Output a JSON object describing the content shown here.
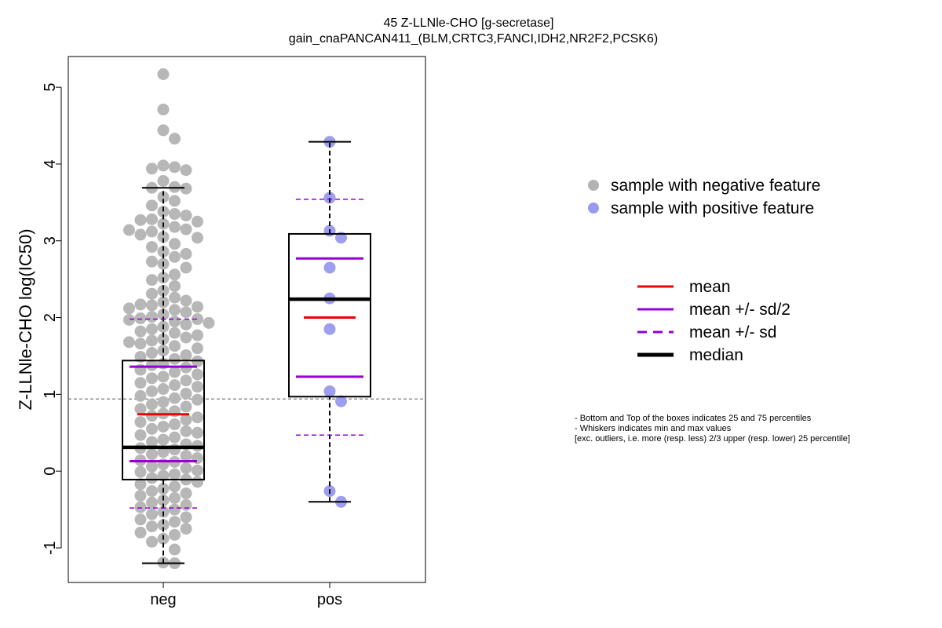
{
  "chart_data": {
    "type": "boxplot",
    "title": "45 Z-LLNle-CHO [g-secretase]",
    "subtitle": "gain_cnaPANCAN411_(BLM,CRTC3,FANCI,IDH2,NR2F2,PCSK6)",
    "xlabel": "",
    "ylabel": "Z-LLNle-CHO log(IC50)",
    "ylim": [
      -1.45,
      5.4
    ],
    "yticks": [
      -1,
      0,
      1,
      2,
      3,
      4,
      5
    ],
    "categories": [
      "neg",
      "pos"
    ],
    "reference_line": 0.94,
    "groups": [
      {
        "name": "neg",
        "color": "#b3b3b3",
        "q1": -0.11,
        "median": 0.31,
        "q3": 1.44,
        "whisker_low": -1.2,
        "whisker_high": 3.69,
        "mean": 0.74,
        "mean_minus_half_sd": 0.13,
        "mean_plus_half_sd": 1.36,
        "mean_minus_sd": -0.48,
        "mean_plus_sd": 1.98,
        "points": [
          5.17,
          4.71,
          4.44,
          4.33,
          3.98,
          3.96,
          3.94,
          3.92,
          3.78,
          3.7,
          3.69,
          3.68,
          3.57,
          3.52,
          3.46,
          3.38,
          3.35,
          3.33,
          3.28,
          3.27,
          3.25,
          3.22,
          3.18,
          3.15,
          3.14,
          3.12,
          3.08,
          3.05,
          3.04,
          2.96,
          2.92,
          2.86,
          2.83,
          2.79,
          2.73,
          2.7,
          2.65,
          2.56,
          2.52,
          2.49,
          2.41,
          2.35,
          2.31,
          2.26,
          2.22,
          2.2,
          2.17,
          2.16,
          2.14,
          2.12,
          2.1,
          2.07,
          2.04,
          2.01,
          1.99,
          1.98,
          1.97,
          1.95,
          1.93,
          1.91,
          1.88,
          1.85,
          1.82,
          1.8,
          1.77,
          1.74,
          1.72,
          1.7,
          1.68,
          1.66,
          1.63,
          1.6,
          1.57,
          1.54,
          1.51,
          1.49,
          1.46,
          1.43,
          1.4,
          1.38,
          1.35,
          1.32,
          1.29,
          1.26,
          1.23,
          1.21,
          1.18,
          1.15,
          1.12,
          1.1,
          1.07,
          1.04,
          1.01,
          0.98,
          0.95,
          0.93,
          0.9,
          0.87,
          0.84,
          0.81,
          0.78,
          0.75,
          0.72,
          0.7,
          0.67,
          0.64,
          0.61,
          0.58,
          0.55,
          0.52,
          0.5,
          0.47,
          0.44,
          0.41,
          0.38,
          0.35,
          0.33,
          0.3,
          0.28,
          0.25,
          0.22,
          0.2,
          0.17,
          0.14,
          0.12,
          0.09,
          0.06,
          0.04,
          0.01,
          -0.01,
          -0.04,
          -0.06,
          -0.09,
          -0.11,
          -0.14,
          -0.17,
          -0.2,
          -0.23,
          -0.26,
          -0.29,
          -0.32,
          -0.35,
          -0.38,
          -0.41,
          -0.44,
          -0.47,
          -0.5,
          -0.53,
          -0.56,
          -0.6,
          -0.63,
          -0.66,
          -0.7,
          -0.72,
          -0.75,
          -0.8,
          -0.83,
          -0.88,
          -0.92,
          -1.02,
          -1.2,
          -1.19
        ]
      },
      {
        "name": "pos",
        "color": "#9999ee",
        "q1": 0.97,
        "median": 2.24,
        "q3": 3.09,
        "whisker_low": -0.4,
        "whisker_high": 4.29,
        "mean": 2.0,
        "mean_minus_half_sd": 1.23,
        "mean_plus_half_sd": 2.77,
        "mean_minus_sd": 0.47,
        "mean_plus_sd": 3.54,
        "points": [
          4.29,
          3.56,
          3.13,
          3.04,
          2.65,
          2.25,
          1.85,
          1.04,
          0.91,
          -0.26,
          -0.4
        ]
      }
    ],
    "legend": {
      "position": "right",
      "points": [
        {
          "label": "sample with negative feature",
          "color": "#b3b3b3"
        },
        {
          "label": "sample with positive feature",
          "color": "#9999ee"
        }
      ],
      "lines": [
        {
          "label": "mean",
          "color": "#ee0000",
          "style": "solid"
        },
        {
          "label": "mean +/- sd/2",
          "color": "#9400d3",
          "style": "solid"
        },
        {
          "label": "mean +/- sd",
          "color": "#9400d3",
          "style": "dashed"
        },
        {
          "label": "median",
          "color": "#000000",
          "style": "solid-thick"
        }
      ]
    },
    "notes": [
      "- Bottom and Top of the boxes indicates 25 and 75 percentiles",
      "- Whiskers indicates min and max values",
      "[exc. outliers, i.e. more (resp. less) 2/3 upper (resp. lower) 25 percentile]"
    ]
  }
}
